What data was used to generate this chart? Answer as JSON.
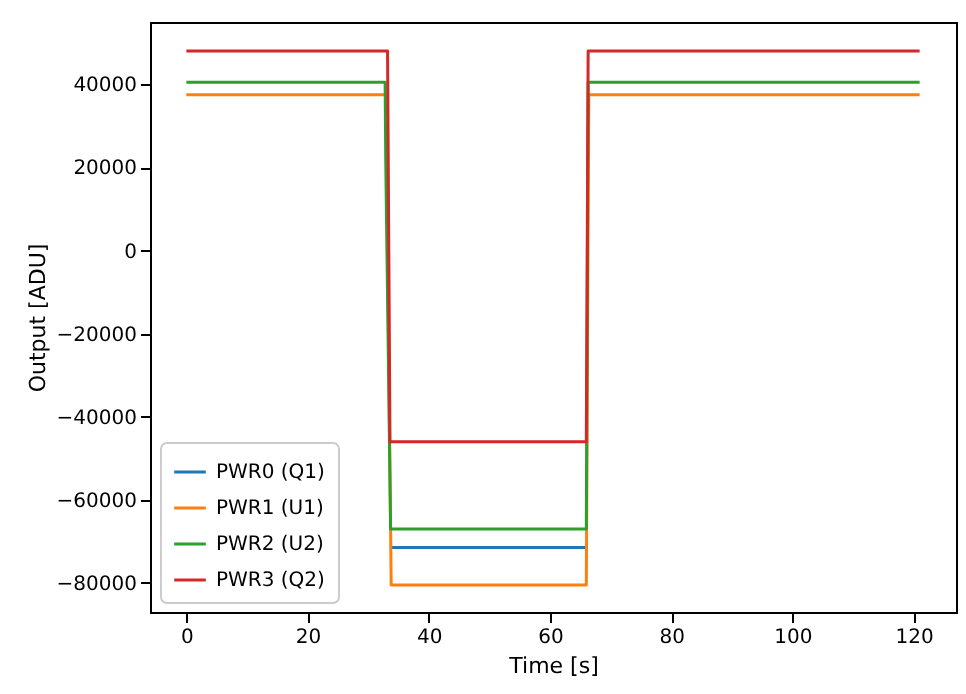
{
  "chart_data": {
    "type": "line",
    "xlabel": "Time [s]",
    "ylabel": "Output [ADU]",
    "xlim": [
      -6,
      127
    ],
    "xticks": [
      0,
      20,
      40,
      60,
      80,
      100,
      120
    ],
    "ylim": [
      -87000,
      55000
    ],
    "yticks": [
      {
        "value": -80000,
        "label": "−80000"
      },
      {
        "value": -60000,
        "label": "−60000"
      },
      {
        "value": -40000,
        "label": "−40000"
      },
      {
        "value": -20000,
        "label": "−20000"
      },
      0,
      20000,
      40000
    ],
    "grid": false,
    "legend": "bottom left",
    "line_style": "solid",
    "marker": "none",
    "series": [
      {
        "name": "PWR0 (Q1)",
        "color": "#1f77b4",
        "x": [
          33.7,
          66.0
        ],
        "values": [
          -71500,
          -71500
        ]
      },
      {
        "name": "PWR1 (U1)",
        "color": "#ff7f0e",
        "x": [
          0,
          33.0,
          33.1,
          33.8,
          66.0,
          66.4,
          121
        ],
        "values": [
          37500,
          37500,
          15000,
          -80500,
          -80500,
          37500,
          37500
        ]
      },
      {
        "name": "PWR2 (U2)",
        "color": "#2ca02c",
        "x": [
          0,
          32.8,
          32.9,
          33.7,
          66.0,
          66.3,
          121
        ],
        "values": [
          40500,
          40500,
          22000,
          -67000,
          -67000,
          40500,
          40500
        ]
      },
      {
        "name": "PWR3 (Q2)",
        "color": "#d62728",
        "x": [
          0,
          33.2,
          33.6,
          66.0,
          66.3,
          121
        ],
        "values": [
          48000,
          48000,
          -46000,
          -46000,
          48000,
          48000
        ]
      }
    ]
  }
}
